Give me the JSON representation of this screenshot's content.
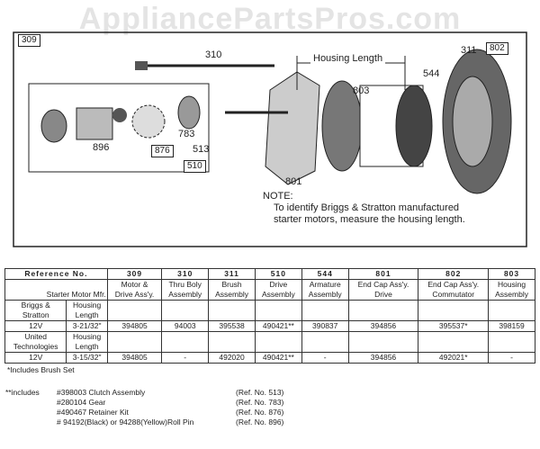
{
  "watermark": "AppliancePartsPros.com",
  "diagram": {
    "callouts": [
      "309",
      "310",
      "311",
      "802",
      "544",
      "803",
      "783",
      "896",
      "876",
      "513",
      "510",
      "801"
    ],
    "housing_length_label": "Housing Length",
    "note_title": "NOTE:",
    "note_lines": [
      "To identify Briggs & Stratton manufactured",
      "starter motors, measure the housing length."
    ]
  },
  "table": {
    "reference_label": "Reference No.",
    "mfr_label": "Starter Motor Mfr.",
    "refs": [
      "309",
      "310",
      "311",
      "510",
      "544",
      "801",
      "802",
      "803"
    ],
    "descriptions": [
      [
        "Motor &",
        "Drive Ass'y."
      ],
      [
        "Thru Boly",
        "Assembly"
      ],
      [
        "Brush",
        "Assembly"
      ],
      [
        "Drive",
        "Assembly"
      ],
      [
        "Armature",
        "Assembly"
      ],
      [
        "End Cap Ass'y.",
        "Drive"
      ],
      [
        "End Cap Ass'y.",
        "Commutator"
      ],
      [
        "Housing",
        "Assembly"
      ]
    ],
    "groups": [
      {
        "mfr": [
          "Briggs &",
          "Stratton"
        ],
        "hl": [
          "Housing",
          "Length"
        ],
        "voltage": "12V",
        "length": "3-21/32\"",
        "parts": [
          "394805",
          "94003",
          "395538",
          "490421**",
          "390837",
          "394856",
          "395537*",
          "398159"
        ]
      },
      {
        "mfr": [
          "United",
          "Technologies"
        ],
        "hl": [
          "Housing",
          "Length"
        ],
        "voltage": "12V",
        "length": "3-15/32\"",
        "parts": [
          "394805",
          "-",
          "492020",
          "490421**",
          "-",
          "394856",
          "492021*",
          "-"
        ]
      }
    ]
  },
  "footnotes": {
    "single": "*Includes Brush Set",
    "double_label": "**includes",
    "items": [
      {
        "text": "#398003  Clutch Assembly",
        "ref": "(Ref. No. 513)"
      },
      {
        "text": "#280104  Gear",
        "ref": "(Ref. No. 783)"
      },
      {
        "text": "#490467  Retainer Kit",
        "ref": "(Ref. No. 876)"
      },
      {
        "text": "# 94192(Black) or 94288(Yellow)Roll Pin",
        "ref": "(Ref. No. 896)"
      }
    ]
  }
}
